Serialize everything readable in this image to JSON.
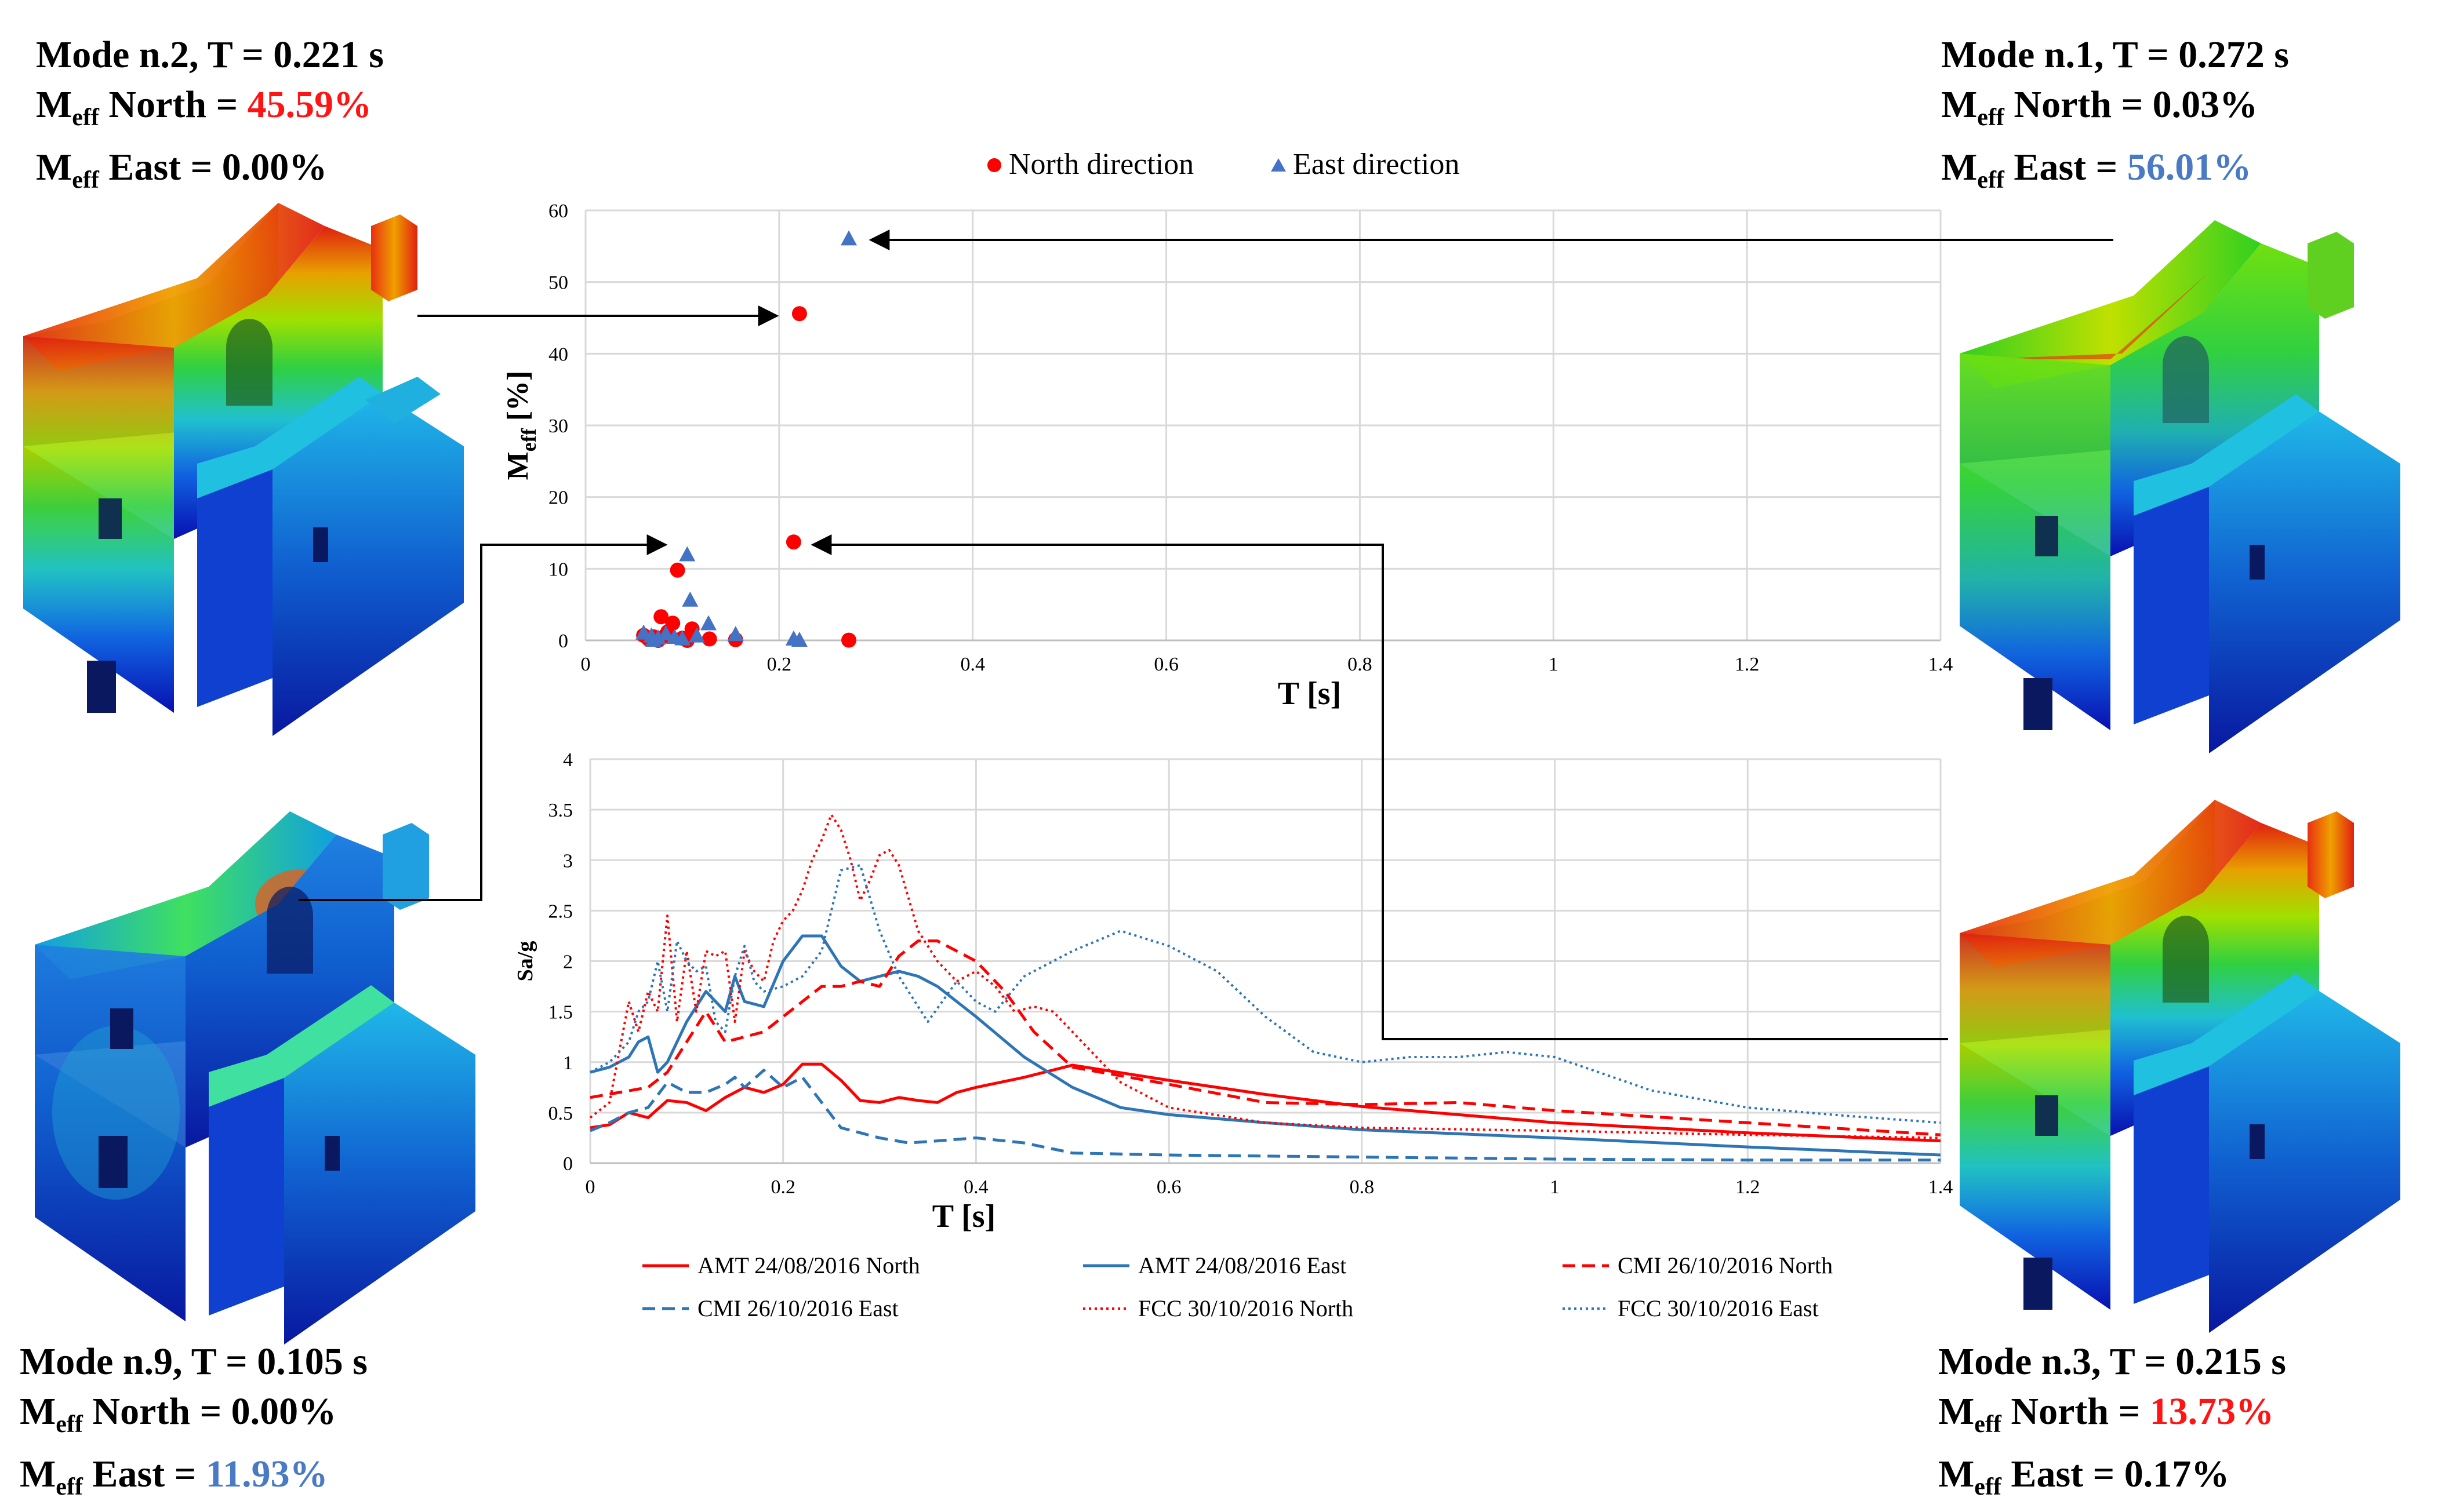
{
  "modes": [
    {
      "id": "mode2",
      "title": "Mode n.2, T = 0.221 s",
      "m_label": "M",
      "m_sub": "eff",
      "north_text": " North = ",
      "north_value": "45.59%",
      "north_color": "red",
      "east_text": " East = ",
      "east_value": "0.00%",
      "east_color": "black"
    },
    {
      "id": "mode1",
      "title": "Mode n.1, T = 0.272 s",
      "m_label": "M",
      "m_sub": "eff",
      "north_text": " North = ",
      "north_value": "0.03%",
      "north_color": "black",
      "east_text": " East = ",
      "east_value": "56.01%",
      "east_color": "blue"
    },
    {
      "id": "mode9",
      "title": "Mode n.9, T = 0.105 s",
      "m_label": "M",
      "m_sub": "eff",
      "north_text": " North = ",
      "north_value": "0.00%",
      "north_color": "black",
      "east_text": " East = ",
      "east_value": "11.93%",
      "east_color": "blue"
    },
    {
      "id": "mode3",
      "title": "Mode n.3, T = 0.215 s",
      "m_label": "M",
      "m_sub": "eff",
      "north_text": " North = ",
      "north_value": "13.73%",
      "north_color": "red",
      "east_text": " East = ",
      "east_value": "0.17%",
      "east_color": "black"
    }
  ],
  "chart_data": [
    {
      "type": "scatter",
      "title": "",
      "xlabel": "T [s]",
      "ylabel_main": "M",
      "ylabel_sub": "eff",
      "ylabel_unit": " [%]",
      "xlim": [
        0,
        1.4
      ],
      "ylim": [
        0,
        60
      ],
      "xticks": [
        0,
        0.2,
        0.4,
        0.6,
        0.8,
        1,
        1.2,
        1.4
      ],
      "xtick_labels": [
        "0",
        "0.2",
        "0.4",
        "0.6",
        "0.8",
        "1",
        "1.2",
        "1.4"
      ],
      "yticks": [
        0,
        10,
        20,
        30,
        40,
        50,
        60
      ],
      "ytick_labels": [
        "0",
        "10",
        "20",
        "30",
        "40",
        "50",
        "60"
      ],
      "legend": [
        {
          "name": "North direction",
          "color": "#ff0000",
          "marker": "circle"
        },
        {
          "name": "East direction",
          "color": "#4472c4",
          "marker": "triangle"
        }
      ],
      "series": [
        {
          "name": "North direction",
          "color": "#ff0000",
          "marker": "circle",
          "points": [
            [
              0.272,
              0.03
            ],
            [
              0.221,
              45.59
            ],
            [
              0.215,
              13.73
            ],
            [
              0.105,
              0.0
            ],
            [
              0.095,
              9.8
            ],
            [
              0.078,
              3.3
            ],
            [
              0.09,
              2.4
            ],
            [
              0.11,
              1.6
            ],
            [
              0.085,
              1.2
            ],
            [
              0.07,
              0.5
            ],
            [
              0.06,
              0.7
            ],
            [
              0.065,
              0.2
            ],
            [
              0.075,
              0.0
            ],
            [
              0.1,
              0.3
            ],
            [
              0.128,
              0.2
            ],
            [
              0.155,
              0.1
            ],
            [
              0.082,
              0.6
            ]
          ]
        },
        {
          "name": "East direction",
          "color": "#4472c4",
          "marker": "triangle",
          "points": [
            [
              0.272,
              56.01
            ],
            [
              0.221,
              0.0
            ],
            [
              0.215,
              0.17
            ],
            [
              0.105,
              11.93
            ],
            [
              0.108,
              5.6
            ],
            [
              0.127,
              2.3
            ],
            [
              0.155,
              0.8
            ],
            [
              0.06,
              1.0
            ],
            [
              0.068,
              0.6
            ],
            [
              0.075,
              0.3
            ],
            [
              0.083,
              0.9
            ],
            [
              0.092,
              0.4
            ],
            [
              0.1,
              0.2
            ],
            [
              0.115,
              0.6
            ],
            [
              0.07,
              0.0
            ]
          ]
        }
      ]
    },
    {
      "type": "line",
      "title": "",
      "xlabel": "T [s]",
      "ylabel": "Sa/g",
      "xlim": [
        0,
        1.4
      ],
      "ylim": [
        0,
        4
      ],
      "xticks": [
        0,
        0.2,
        0.4,
        0.6,
        0.8,
        1,
        1.2,
        1.4
      ],
      "xtick_labels": [
        "0",
        "0.2",
        "0.4",
        "0.6",
        "0.8",
        "1",
        "1.2",
        "1.4"
      ],
      "yticks": [
        0,
        0.5,
        1,
        1.5,
        2,
        2.5,
        3,
        3.5,
        4
      ],
      "ytick_labels": [
        "0",
        "0.5",
        "1",
        "1.5",
        "2",
        "2.5",
        "3",
        "3.5",
        "4"
      ],
      "series": [
        {
          "name": "AMT 24/08/2016 North",
          "color": "#ff0000",
          "dash": "solid",
          "x": [
            0,
            0.02,
            0.04,
            0.06,
            0.08,
            0.1,
            0.12,
            0.14,
            0.16,
            0.18,
            0.2,
            0.22,
            0.24,
            0.26,
            0.28,
            0.3,
            0.32,
            0.34,
            0.36,
            0.38,
            0.4,
            0.45,
            0.5,
            0.6,
            0.7,
            0.8,
            0.9,
            1,
            1.2,
            1.4
          ],
          "y": [
            0.35,
            0.38,
            0.5,
            0.45,
            0.62,
            0.6,
            0.52,
            0.65,
            0.75,
            0.7,
            0.78,
            0.98,
            0.98,
            0.82,
            0.62,
            0.6,
            0.65,
            0.62,
            0.6,
            0.7,
            0.75,
            0.85,
            0.97,
            0.82,
            0.68,
            0.56,
            0.48,
            0.4,
            0.3,
            0.22
          ]
        },
        {
          "name": "AMT 24/08/2016 East",
          "color": "#2e75b6",
          "dash": "solid",
          "x": [
            0,
            0.02,
            0.04,
            0.05,
            0.06,
            0.07,
            0.08,
            0.1,
            0.12,
            0.14,
            0.15,
            0.16,
            0.18,
            0.2,
            0.22,
            0.24,
            0.26,
            0.28,
            0.3,
            0.32,
            0.34,
            0.36,
            0.38,
            0.4,
            0.45,
            0.5,
            0.55,
            0.6,
            0.7,
            0.8,
            1,
            1.2,
            1.4
          ],
          "y": [
            0.9,
            0.95,
            1.05,
            1.2,
            1.25,
            0.9,
            1.0,
            1.4,
            1.7,
            1.5,
            1.85,
            1.6,
            1.55,
            2.0,
            2.25,
            2.25,
            1.95,
            1.8,
            1.85,
            1.9,
            1.85,
            1.75,
            1.6,
            1.45,
            1.05,
            0.75,
            0.55,
            0.48,
            0.4,
            0.33,
            0.25,
            0.16,
            0.08
          ]
        },
        {
          "name": "CMI 26/10/2016 North",
          "color": "#ff0000",
          "dash": "dash",
          "x": [
            0,
            0.03,
            0.06,
            0.08,
            0.1,
            0.12,
            0.14,
            0.16,
            0.18,
            0.2,
            0.22,
            0.24,
            0.26,
            0.28,
            0.3,
            0.32,
            0.34,
            0.36,
            0.38,
            0.4,
            0.43,
            0.46,
            0.5,
            0.6,
            0.7,
            0.8,
            0.9,
            1,
            1.2,
            1.4
          ],
          "y": [
            0.65,
            0.7,
            0.75,
            0.9,
            1.2,
            1.5,
            1.2,
            1.25,
            1.3,
            1.45,
            1.6,
            1.75,
            1.75,
            1.8,
            1.75,
            2.05,
            2.2,
            2.2,
            2.1,
            2.0,
            1.7,
            1.3,
            0.95,
            0.78,
            0.6,
            0.58,
            0.6,
            0.52,
            0.4,
            0.28
          ]
        },
        {
          "name": "CMI 26/10/2016 East",
          "color": "#2e75b6",
          "dash": "dash",
          "x": [
            0,
            0.02,
            0.04,
            0.06,
            0.08,
            0.1,
            0.12,
            0.14,
            0.15,
            0.16,
            0.18,
            0.2,
            0.22,
            0.24,
            0.26,
            0.28,
            0.3,
            0.33,
            0.36,
            0.4,
            0.45,
            0.5,
            0.6,
            0.8,
            1,
            1.2,
            1.4
          ],
          "y": [
            0.32,
            0.4,
            0.5,
            0.55,
            0.8,
            0.7,
            0.7,
            0.78,
            0.85,
            0.75,
            0.92,
            0.75,
            0.85,
            0.6,
            0.35,
            0.3,
            0.25,
            0.2,
            0.22,
            0.25,
            0.2,
            0.1,
            0.08,
            0.06,
            0.04,
            0.03,
            0.03
          ]
        },
        {
          "name": "FCC 30/10/2016 North",
          "color": "#ff0000",
          "dash": "dot",
          "x": [
            0,
            0.02,
            0.04,
            0.05,
            0.06,
            0.07,
            0.08,
            0.09,
            0.1,
            0.11,
            0.12,
            0.13,
            0.14,
            0.15,
            0.16,
            0.17,
            0.18,
            0.19,
            0.2,
            0.21,
            0.22,
            0.23,
            0.24,
            0.25,
            0.26,
            0.27,
            0.28,
            0.29,
            0.3,
            0.31,
            0.32,
            0.34,
            0.36,
            0.38,
            0.4,
            0.42,
            0.44,
            0.46,
            0.48,
            0.5,
            0.55,
            0.6,
            0.7,
            0.8,
            1,
            1.2,
            1.4
          ],
          "y": [
            0.45,
            0.6,
            1.6,
            1.3,
            1.7,
            1.5,
            2.45,
            1.4,
            2.1,
            1.5,
            2.1,
            2.05,
            2.1,
            1.4,
            2.1,
            1.9,
            1.8,
            2.2,
            2.4,
            2.5,
            2.7,
            3.0,
            3.2,
            3.45,
            3.3,
            3.0,
            2.6,
            2.8,
            3.05,
            3.1,
            2.95,
            2.3,
            2.0,
            1.8,
            1.9,
            1.75,
            1.5,
            1.55,
            1.5,
            1.3,
            0.8,
            0.55,
            0.4,
            0.35,
            0.32,
            0.28,
            0.25
          ]
        },
        {
          "name": "FCC 30/10/2016 East",
          "color": "#2e75b6",
          "dash": "dot",
          "x": [
            0,
            0.02,
            0.04,
            0.05,
            0.06,
            0.07,
            0.08,
            0.09,
            0.1,
            0.11,
            0.12,
            0.13,
            0.14,
            0.15,
            0.16,
            0.17,
            0.18,
            0.2,
            0.22,
            0.24,
            0.26,
            0.28,
            0.3,
            0.32,
            0.35,
            0.38,
            0.4,
            0.42,
            0.45,
            0.5,
            0.55,
            0.6,
            0.65,
            0.7,
            0.75,
            0.8,
            0.85,
            0.9,
            0.95,
            1,
            1.1,
            1.2,
            1.3,
            1.4
          ],
          "y": [
            0.9,
            1.0,
            1.2,
            1.5,
            1.6,
            2.0,
            1.5,
            2.2,
            2.0,
            1.9,
            1.95,
            1.4,
            1.3,
            1.85,
            2.15,
            1.8,
            1.7,
            1.75,
            1.85,
            2.1,
            2.9,
            2.95,
            2.3,
            1.85,
            1.4,
            1.8,
            1.6,
            1.5,
            1.85,
            2.1,
            2.3,
            2.15,
            1.9,
            1.45,
            1.1,
            1.0,
            1.05,
            1.05,
            1.1,
            1.05,
            0.72,
            0.55,
            0.47,
            0.4
          ]
        }
      ]
    }
  ],
  "arrows": [
    {
      "from_mode": "mode2",
      "to_point": "T=0.221 s, Meff North 45.59%"
    },
    {
      "from_mode": "mode1",
      "to_point": "T=0.272 s, Meff East 56.01%"
    },
    {
      "from_mode": "mode9",
      "to_point": "T=0.105 s, Meff East 11.93%"
    },
    {
      "from_mode": "mode3",
      "to_point": "T=0.215 s, Meff North 13.73%"
    }
  ]
}
